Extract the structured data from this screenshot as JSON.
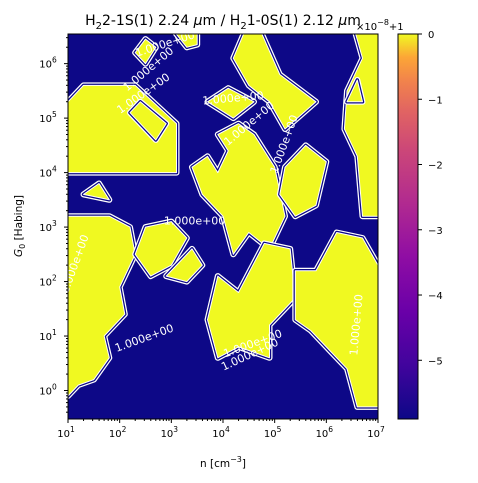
{
  "chart_data": {
    "type": "heatmap",
    "title": "H$_2$2-1S(1) 2.24 $\\mu$m / H$_2$1-0S(1) 2.12 $\\mu$m",
    "title_parts": {
      "a": "H",
      "b": "2",
      "c": "2-1S(1) 2.24 ",
      "d": "μ",
      "e": "m / H",
      "f": "2",
      "g": "1-0S(1) 2.12 ",
      "h": "μ",
      "i": "m"
    },
    "xlabel": "n [cm$^{-3}$]",
    "xlabel_parts": {
      "a": "n [cm",
      "b": "−3",
      "c": "]"
    },
    "ylabel": "$G_0$ [Habing]",
    "ylabel_parts": {
      "a": "G",
      "b": "0",
      "c": " [Habing]"
    },
    "x_scale": "log",
    "y_scale": "log",
    "xlim": [
      10,
      10000000
    ],
    "ylim": [
      0.3,
      3500000
    ],
    "x_ticks": [
      {
        "base": "10",
        "exp": "1"
      },
      {
        "base": "10",
        "exp": "2"
      },
      {
        "base": "10",
        "exp": "3"
      },
      {
        "base": "10",
        "exp": "4"
      },
      {
        "base": "10",
        "exp": "5"
      },
      {
        "base": "10",
        "exp": "6"
      },
      {
        "base": "10",
        "exp": "7"
      }
    ],
    "y_ticks": [
      {
        "base": "10",
        "exp": "0"
      },
      {
        "base": "10",
        "exp": "1"
      },
      {
        "base": "10",
        "exp": "2"
      },
      {
        "base": "10",
        "exp": "3"
      },
      {
        "base": "10",
        "exp": "4"
      },
      {
        "base": "10",
        "exp": "5"
      },
      {
        "base": "10",
        "exp": "6"
      }
    ],
    "colorbar": {
      "colormap": "plasma",
      "range": [
        -5.9,
        0
      ],
      "ticks": [
        "0",
        "−1",
        "−2",
        "−3",
        "−4",
        "−5"
      ],
      "offset_text": {
        "a": "×10",
        "b": "−8",
        "c": "+1"
      }
    },
    "contour_level": "1.000e+00",
    "contour_labels": [
      "1.000e+00",
      "1.000e+00",
      "1.000e+00",
      "1.000e+00",
      "1.000e+00",
      "1.000e+00",
      "1.000e+00",
      "1.000e+00",
      "1.000e+00",
      "1.000e+00",
      "1.000e+00",
      "1.000e+00"
    ],
    "colors": {
      "low": "#0d0887",
      "high": "#f0f921",
      "contour": "#ffffff"
    }
  }
}
